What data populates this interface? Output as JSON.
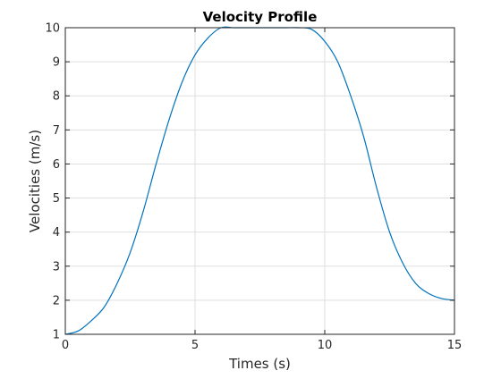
{
  "chart_data": {
    "type": "line",
    "title": "Velocity Profile",
    "xlabel": "Times (s)",
    "ylabel": "Velocities (m/s)",
    "xlim": [
      0,
      15
    ],
    "ylim": [
      1,
      10
    ],
    "xticks": [
      0,
      5,
      10,
      15
    ],
    "yticks": [
      1,
      2,
      3,
      4,
      5,
      6,
      7,
      8,
      9,
      10
    ],
    "grid": true,
    "series": [
      {
        "color": "#0072BD",
        "x": [
          0,
          0.5,
          1,
          1.5,
          2,
          2.5,
          3,
          3.5,
          4,
          4.5,
          5,
          5.5,
          6,
          6.5,
          7,
          7.5,
          8,
          8.5,
          9,
          9.5,
          10,
          10.5,
          11,
          11.5,
          12,
          12.5,
          13,
          13.5,
          14,
          14.5,
          15
        ],
        "y": [
          1.0,
          1.1,
          1.4,
          1.8,
          2.5,
          3.4,
          4.6,
          6.0,
          7.3,
          8.4,
          9.2,
          9.7,
          10.0,
          10.0,
          10.0,
          10.0,
          10.0,
          10.0,
          10.0,
          9.95,
          9.6,
          9.0,
          8.0,
          6.8,
          5.3,
          4.0,
          3.1,
          2.5,
          2.2,
          2.05,
          2.0
        ]
      }
    ]
  }
}
